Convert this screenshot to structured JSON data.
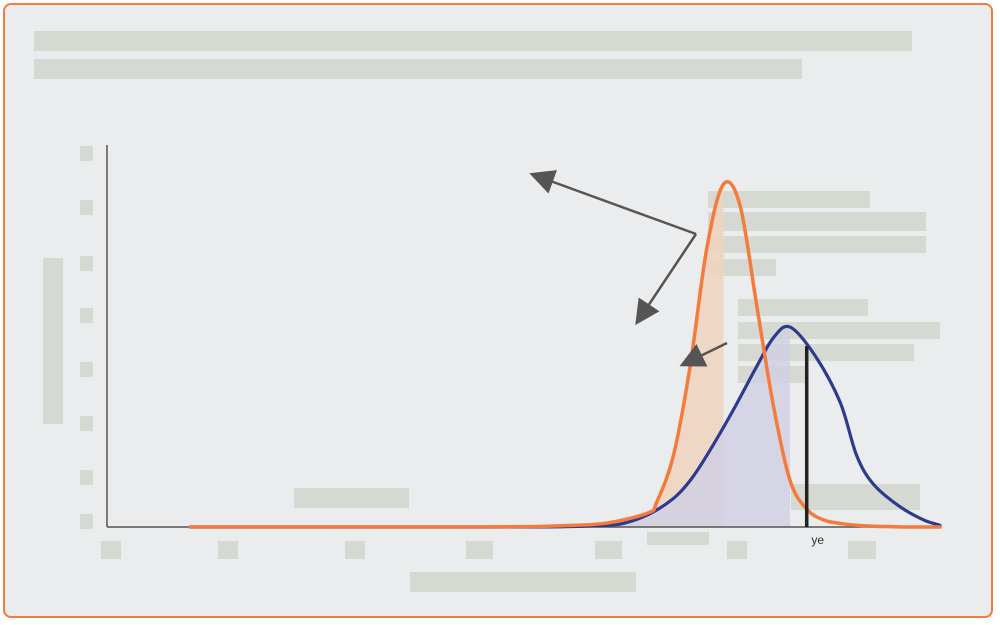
{
  "chart_data": {
    "type": "line",
    "title": "",
    "xlabel": "",
    "ylabel": "",
    "x_range": [
      0,
      100
    ],
    "y_range": [
      0,
      1
    ],
    "series": [
      {
        "name": "",
        "color": "#f47b3c",
        "shaded_fill": "#f0d3bd",
        "x": [
          10,
          20,
          30,
          40,
          45,
          50,
          55,
          60,
          65,
          66,
          68,
          70,
          72,
          74,
          76,
          78,
          80,
          82,
          84,
          86,
          88,
          90,
          92,
          94,
          96,
          98,
          100
        ],
        "y": [
          0,
          0,
          0,
          0,
          0,
          0.001,
          0.004,
          0.011,
          0.04,
          0.07,
          0.2,
          0.45,
          0.78,
          0.96,
          0.9,
          0.62,
          0.34,
          0.13,
          0.05,
          0.02,
          0.01,
          0.005,
          0.002,
          0.001,
          0,
          0,
          0
        ]
      },
      {
        "name": "",
        "color": "#2e3a8c",
        "shaded_fill": "#cfd0e4",
        "x": [
          10,
          20,
          30,
          40,
          50,
          55,
          60,
          62,
          65,
          68,
          70,
          72,
          75,
          78,
          80,
          82,
          85,
          88,
          90,
          92,
          95,
          98,
          100
        ],
        "y": [
          0,
          0,
          0,
          0,
          0,
          0.001,
          0.005,
          0.01,
          0.035,
          0.08,
          0.13,
          0.2,
          0.32,
          0.45,
          0.53,
          0.56,
          0.48,
          0.35,
          0.2,
          0.12,
          0.06,
          0.02,
          0.005
        ]
      }
    ],
    "vertical_marker": {
      "x": 84,
      "label": "ye"
    }
  },
  "legend_colors": {
    "orange": "#f47b3c",
    "navy": "#2e3a8c",
    "marker": "#222222",
    "arrow": "#555555"
  }
}
